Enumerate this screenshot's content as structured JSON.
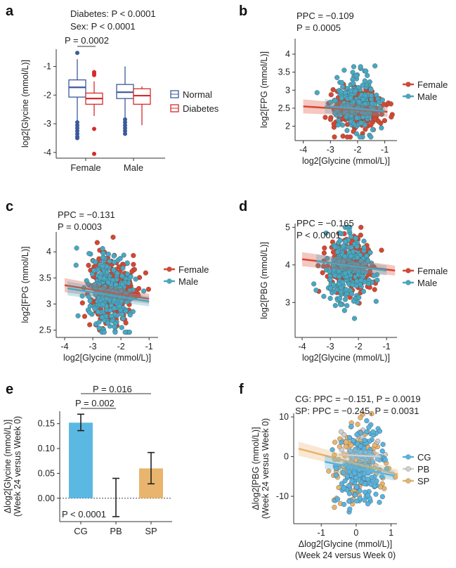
{
  "chart_data": [
    {
      "panel": "a",
      "type": "box",
      "annotations": [
        "Diabetes: P < 0.0001",
        "Sex: P < 0.0001",
        "P = 0.0002"
      ],
      "ylabel": "log2[Glycine (mmol/L)]",
      "categories": [
        "Female",
        "Male"
      ],
      "yticks": [
        -1,
        -2,
        -3,
        -4
      ],
      "ylim": [
        -4.2,
        -0.4
      ],
      "legend": {
        "placement": "right",
        "entries": [
          "Normal",
          "Diabetes"
        ]
      },
      "colors": {
        "Normal": "#3b5a9a",
        "Diabetes": "#d62b2b"
      },
      "boxes": [
        {
          "category": "Female",
          "group": "Normal",
          "q1": -2.07,
          "median": -1.73,
          "q3": -1.47,
          "lo": -2.9,
          "hi": -0.75,
          "outliers": [
            -0.53,
            -2.95,
            -3.05,
            -3.15,
            -3.25,
            -3.35,
            -3.45,
            -3.5
          ]
        },
        {
          "category": "Female",
          "group": "Diabetes",
          "q1": -2.32,
          "median": -2.12,
          "q3": -1.93,
          "lo": -2.73,
          "hi": -1.52,
          "outliers": [
            -1.2,
            -1.25,
            -1.3,
            -3.18,
            -4.05
          ]
        },
        {
          "category": "Male",
          "group": "Normal",
          "q1": -2.12,
          "median": -1.9,
          "q3": -1.63,
          "lo": -2.8,
          "hi": -1.0,
          "outliers": [
            -2.85,
            -2.95,
            -3.05,
            -3.15,
            -3.25,
            -3.35
          ]
        },
        {
          "category": "Male",
          "group": "Diabetes",
          "q1": -2.32,
          "median": -2.02,
          "q3": -1.78,
          "lo": -3.05,
          "hi": -1.7,
          "outliers": []
        }
      ]
    },
    {
      "panel": "b",
      "type": "scatter",
      "annotations": [
        "PPC = −0.109",
        "P = 0.0005"
      ],
      "xlabel": "log2[Glycine (mmol/L)]",
      "ylabel": "log2[FPG (mmol/L)]",
      "xticks": [
        -4,
        -3,
        -2,
        -1
      ],
      "yticks": [
        4.0,
        3.5,
        3.0,
        2.5,
        2.0
      ],
      "xlim": [
        -4.3,
        -0.55
      ],
      "ylim": [
        1.6,
        4.43
      ],
      "legend": {
        "placement": "right",
        "entries": [
          "Female",
          "Male"
        ]
      },
      "series": [
        {
          "name": "Female",
          "color": "#d9452f",
          "center": [
            -2.0,
            2.5
          ],
          "spread": [
            0.45,
            0.28
          ],
          "n": 320,
          "fit": [
            [
              -4,
              2.55
            ],
            [
              -0.9,
              2.4
            ]
          ]
        },
        {
          "name": "Male",
          "color": "#45a9c4",
          "center": [
            -2.1,
            2.65
          ],
          "spread": [
            0.4,
            0.4
          ],
          "n": 200,
          "fit": [
            [
              -3.2,
              2.56
            ],
            [
              -1,
              2.42
            ]
          ]
        }
      ]
    },
    {
      "panel": "c",
      "type": "scatter",
      "annotations": [
        "PPC = −0.131",
        "P = 0.0003"
      ],
      "xlabel": "log2[Glycine (mmol/L)]",
      "ylabel": "log2[FPG (mmol/L)]",
      "xticks": [
        -4,
        -3,
        -2,
        -1
      ],
      "yticks": [
        4.0,
        3.5,
        3.0,
        2.5
      ],
      "xlim": [
        -4.3,
        -0.68
      ],
      "ylim": [
        2.36,
        4.38
      ],
      "legend": {
        "placement": "right",
        "entries": [
          "Female",
          "Male"
        ]
      },
      "series": [
        {
          "name": "Female",
          "color": "#d9452f",
          "center": [
            -2.3,
            3.3
          ],
          "spread": [
            0.4,
            0.35
          ],
          "n": 260,
          "fit": [
            [
              -4,
              3.36
            ],
            [
              -1,
              3.1
            ]
          ]
        },
        {
          "name": "Male",
          "color": "#45a9c4",
          "center": [
            -2.4,
            3.2
          ],
          "spread": [
            0.42,
            0.38
          ],
          "n": 260,
          "fit": [
            [
              -3.9,
              3.3
            ],
            [
              -1,
              3.05
            ]
          ]
        }
      ]
    },
    {
      "panel": "d",
      "type": "scatter",
      "annotations": [
        "PPC = −0.165",
        "P < 0.0001"
      ],
      "xlabel": "log2[Glycine (mmol/L)]",
      "ylabel": "log2[PBG (mmol/L)]",
      "xticks": [
        -4,
        -3,
        -2,
        -1
      ],
      "yticks": [
        5,
        4,
        3
      ],
      "xlim": [
        -4.25,
        -0.63
      ],
      "ylim": [
        2.07,
        5.1
      ],
      "legend": {
        "placement": "right",
        "entries": [
          "Female",
          "Male"
        ]
      },
      "series": [
        {
          "name": "Female",
          "color": "#d9452f",
          "center": [
            -2.3,
            4.0
          ],
          "spread": [
            0.42,
            0.35
          ],
          "n": 260,
          "fit": [
            [
              -4,
              4.15
            ],
            [
              -0.7,
              3.85
            ]
          ]
        },
        {
          "name": "Male",
          "color": "#45a9c4",
          "center": [
            -2.4,
            3.9
          ],
          "spread": [
            0.4,
            0.42
          ],
          "n": 260,
          "fit": [
            [
              -3.5,
              4.1
            ],
            [
              -1,
              3.85
            ]
          ]
        }
      ]
    },
    {
      "panel": "e",
      "type": "bar",
      "annotations": [
        "P = 0.016",
        "P = 0.002",
        "P < 0.0001"
      ],
      "ylabel": [
        "Δlog2[Glycine (mmol/L)]",
        "(Week 24 versus Week 0)"
      ],
      "categories": [
        "CG",
        "PB",
        "SP"
      ],
      "values": [
        0.152,
        0.0,
        0.06
      ],
      "errors": [
        [
          0.136,
          0.169
        ],
        [
          -0.037,
          0.04
        ],
        [
          0.029,
          0.092
        ]
      ],
      "colors": [
        "#5bb8e3",
        "#cccccc",
        "#e8b46e"
      ],
      "yticks": [
        "0.15",
        "0.10",
        "0.05",
        "0.00"
      ],
      "ylim": [
        -0.047,
        0.175
      ]
    },
    {
      "panel": "f",
      "type": "scatter",
      "annotations": [
        "CG: PPC = −0.151, P = 0.0019",
        "SP: PPC = −0.245, P = 0.0031"
      ],
      "xlabel": [
        "Δlog2[Glycine (mmol/L)]",
        "(Week 24 versus Week 0)"
      ],
      "ylabel": [
        "Δlog2[PBG (mmol/L)]",
        "(Week 24 versus Week 0)"
      ],
      "xticks": [
        -1,
        0,
        1
      ],
      "yticks": [
        10,
        0,
        -10
      ],
      "xlim": [
        -1.79,
        1.17
      ],
      "ylim": [
        -16.9,
        10.9
      ],
      "legend": {
        "placement": "right",
        "entries": [
          "CG",
          "PB",
          "SP"
        ]
      },
      "series": [
        {
          "name": "PB",
          "color": "#cfcfcf",
          "center": [
            0.1,
            1.5
          ],
          "spread": [
            0.3,
            3
          ],
          "n": 60,
          "fit": [
            [
              -0.5,
              0.5
            ],
            [
              0.7,
              0.0
            ]
          ]
        },
        {
          "name": "SP",
          "color": "#e8b46e",
          "center": [
            0.0,
            -2.5
          ],
          "spread": [
            0.35,
            4.5
          ],
          "n": 130,
          "fit": [
            [
              -1.65,
              2.0
            ],
            [
              1.2,
              -4.5
            ]
          ]
        },
        {
          "name": "CG",
          "color": "#56b4e0",
          "center": [
            0.15,
            -3
          ],
          "spread": [
            0.35,
            4.2
          ],
          "n": 200,
          "fit": [
            [
              -0.9,
              -1.3
            ],
            [
              1.1,
              -4.8
            ]
          ]
        }
      ]
    }
  ]
}
